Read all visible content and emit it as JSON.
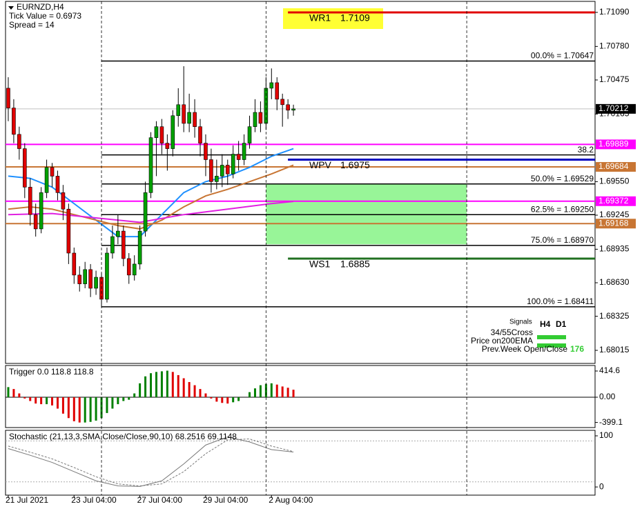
{
  "chart_data": [
    {
      "type": "candlestick",
      "title": "EURNZD,H4",
      "info": [
        "Tick Value = 0.6973",
        "Spread = 14"
      ],
      "x": [
        0,
        1,
        2,
        3,
        4,
        5,
        6,
        7,
        8,
        9,
        10,
        11,
        12,
        13,
        14,
        15,
        16,
        17,
        18,
        19,
        20,
        21,
        22,
        23,
        24,
        25,
        26,
        27,
        28,
        29,
        30,
        31,
        32,
        33,
        34,
        35,
        36,
        37,
        38,
        39,
        40,
        41,
        42,
        43,
        44,
        45,
        46,
        47,
        48,
        49,
        50,
        51,
        52
      ],
      "open": [
        1.704,
        1.7022,
        1.6998,
        1.6985,
        1.695,
        1.6925,
        1.6912,
        1.6945,
        1.6968,
        1.696,
        1.6945,
        1.693,
        1.689,
        1.687,
        1.6862,
        1.6875,
        1.6858,
        1.6868,
        1.6848,
        1.689,
        1.6905,
        1.691,
        1.6885,
        1.687,
        1.688,
        1.691,
        1.6945,
        1.6995,
        1.7005,
        1.699,
        1.6985,
        1.7015,
        1.7025,
        1.7008,
        1.7018,
        1.7005,
        1.699,
        1.6975,
        1.6955,
        1.696,
        1.697,
        1.6962,
        1.698,
        1.6975,
        1.699,
        1.7005,
        1.7018,
        1.7008,
        1.704,
        1.7045,
        1.703,
        1.7025,
        1.702
      ],
      "high": [
        1.705,
        1.703,
        1.7005,
        1.699,
        1.6958,
        1.6935,
        1.695,
        1.6975,
        1.6972,
        1.6965,
        1.6952,
        1.6935,
        1.6895,
        1.6878,
        1.6882,
        1.688,
        1.6874,
        1.6872,
        1.6895,
        1.6915,
        1.6925,
        1.6915,
        1.689,
        1.6888,
        1.6915,
        1.6955,
        1.7,
        1.701,
        1.7012,
        1.6998,
        1.702,
        1.704,
        1.706,
        1.7035,
        1.703,
        1.7012,
        1.6998,
        1.6985,
        1.6975,
        1.698,
        1.6975,
        1.6988,
        1.6992,
        1.6998,
        1.7015,
        1.703,
        1.7028,
        1.705,
        1.7058,
        1.705,
        1.7035,
        1.703,
        1.7025
      ],
      "low": [
        1.701,
        1.699,
        1.6975,
        1.694,
        1.6915,
        1.6905,
        1.6908,
        1.694,
        1.695,
        1.6938,
        1.692,
        1.688,
        1.6862,
        1.6855,
        1.6858,
        1.685,
        1.6852,
        1.6841,
        1.6845,
        1.6885,
        1.6898,
        1.6878,
        1.6862,
        1.6865,
        1.6875,
        1.6905,
        1.694,
        1.696,
        1.698,
        1.6965,
        1.6978,
        1.7005,
        1.7,
        1.7,
        1.6995,
        1.6978,
        1.696,
        1.6945,
        1.6948,
        1.695,
        1.6952,
        1.6958,
        1.6965,
        1.697,
        1.6985,
        1.7,
        1.7,
        1.7002,
        1.703,
        1.702,
        1.7005,
        1.7012,
        1.7015
      ],
      "close": [
        1.7022,
        1.6998,
        1.6985,
        1.695,
        1.6925,
        1.6912,
        1.6945,
        1.6968,
        1.696,
        1.6945,
        1.693,
        1.689,
        1.687,
        1.6862,
        1.6875,
        1.6858,
        1.6868,
        1.6848,
        1.689,
        1.6905,
        1.691,
        1.6885,
        1.687,
        1.688,
        1.691,
        1.6945,
        1.6995,
        1.7005,
        1.699,
        1.6985,
        1.7015,
        1.7025,
        1.7008,
        1.7018,
        1.7005,
        1.699,
        1.6975,
        1.6955,
        1.696,
        1.697,
        1.6962,
        1.698,
        1.6975,
        1.699,
        1.7005,
        1.7018,
        1.7008,
        1.704,
        1.7045,
        1.703,
        1.7025,
        1.702,
        1.70212
      ],
      "up_color": "#00a000",
      "down_color": "#e00000",
      "xlim": [
        -0.5,
        107
      ],
      "xticks": [
        {
          "value": 0,
          "label": "21 Jul 2021"
        },
        {
          "value": 12,
          "label": "23 Jul 04:00"
        },
        {
          "value": 24,
          "label": "27 Jul 04:00"
        },
        {
          "value": 36,
          "label": "29 Jul 04:00"
        },
        {
          "value": 48,
          "label": "2 Aug 04:00"
        }
      ],
      "ylim": [
        1.67896,
        1.7119
      ],
      "yticks": [
        {
          "value": 1.7109,
          "label": "1.71090"
        },
        {
          "value": 1.7078,
          "label": "1.70780"
        },
        1.70475,
        1.70165,
        {
          "value": 1.6955,
          "label": "1.69550"
        },
        1.69245,
        1.68935,
        {
          "value": 1.6863,
          "label": "1.68630"
        },
        1.68325,
        1.68015
      ],
      "separators": [
        17,
        47,
        83.6
      ],
      "overlays": [
        {
          "color": "#1e90ff",
          "x": [
            0,
            4,
            8,
            12,
            16,
            20,
            24,
            28,
            32,
            36,
            40,
            44,
            48,
            52
          ],
          "values": [
            1.696,
            1.6958,
            1.695,
            1.6935,
            1.692,
            1.6905,
            1.6905,
            1.6925,
            1.6945,
            1.6955,
            1.696,
            1.6968,
            1.6978,
            1.6985
          ]
        },
        {
          "color": "#c87533",
          "x": [
            0,
            4,
            8,
            12,
            16,
            20,
            24,
            28,
            32,
            36,
            40,
            44,
            48,
            52
          ],
          "values": [
            1.693,
            1.6932,
            1.693,
            1.6925,
            1.692,
            1.6915,
            1.6912,
            1.692,
            1.6932,
            1.6942,
            1.6948,
            1.6955,
            1.6962,
            1.697
          ]
        },
        {
          "color": "#e020e0",
          "x": [
            0,
            8,
            16,
            24,
            32,
            40,
            48,
            52
          ],
          "values": [
            1.6925,
            1.6926,
            1.6922,
            1.6918,
            1.6925,
            1.693,
            1.6935,
            1.6937
          ]
        }
      ],
      "zone": {
        "x": [
          47,
          83.6
        ],
        "values": [
          1.6898,
          1.6953
        ],
        "color": "#98f598"
      },
      "fibonacci": {
        "start": 17,
        "color": "#000000",
        "levels": [
          {
            "value": 1.70647,
            "label": "00.0% = 1.70647"
          },
          {
            "value": 1.69793,
            "label": "38.2"
          },
          {
            "value": 1.69529,
            "label": "50.0% = 1.69529"
          },
          {
            "value": 1.6925,
            "label": "62.5% = 1.69250"
          },
          {
            "value": 1.6897,
            "label": "75.0% = 1.68970"
          },
          {
            "value": 1.68411,
            "label": "100.0% = 1.68411"
          }
        ]
      },
      "pivots": {
        "start": 51,
        "levels": [
          {
            "name": "WR1",
            "value": 1.7109,
            "color": "#e00000"
          },
          {
            "name": "WPV",
            "value": 1.6975,
            "color": "#0000c0"
          },
          {
            "name": "WS1",
            "value": 1.6885,
            "color": "#207020"
          }
        ]
      },
      "price_tags": [
        {
          "value": 1.70212,
          "color": "#000000"
        },
        {
          "value": 1.69889,
          "color": "#ff00ff"
        },
        {
          "value": 1.69684,
          "color": "#c87533"
        },
        {
          "value": 1.69372,
          "color": "#ff00ff"
        },
        {
          "value": 1.69168,
          "color": "#c87533"
        }
      ],
      "signals": {
        "title": "Signals",
        "columns": [
          "H4",
          "D1"
        ],
        "color": "#33cc33",
        "rows": [
          {
            "label": "34/55Cross"
          },
          {
            "label": "Price on200EMA"
          },
          {
            "label": "Prev.Week Open/Close",
            "value": 176
          }
        ]
      }
    },
    {
      "type": "histogram",
      "title": "Trigger 0.0 118.8 118.8",
      "x": [
        0,
        1,
        2,
        3,
        4,
        5,
        6,
        7,
        8,
        9,
        10,
        11,
        12,
        13,
        14,
        15,
        16,
        17,
        18,
        19,
        20,
        21,
        22,
        23,
        24,
        25,
        26,
        27,
        28,
        29,
        30,
        31,
        32,
        33,
        34,
        35,
        36,
        37,
        38,
        39,
        40,
        41,
        42,
        43,
        44,
        45,
        46,
        47,
        48,
        49,
        50,
        51,
        52
      ],
      "values": [
        160,
        130,
        60,
        -20,
        -60,
        -100,
        -110,
        -110,
        -130,
        -180,
        -260,
        -330,
        -380,
        -400,
        -400,
        -390,
        -370,
        -330,
        -250,
        -180,
        -110,
        -60,
        -40,
        60,
        220,
        330,
        380,
        400,
        410,
        420,
        400,
        350,
        300,
        240,
        190,
        130,
        60,
        -20,
        -70,
        -90,
        -100,
        -80,
        -60,
        0,
        80,
        140,
        190,
        210,
        220,
        200,
        170,
        150,
        118.8
      ],
      "up_color": "#008000",
      "down_color": "#e00000",
      "ylim": [
        -480,
        502
      ],
      "yticks": [
        414.6,
        {
          "value": 0,
          "label": "0.00"
        },
        -399.1
      ]
    },
    {
      "type": "line",
      "title": "Stochastic (21,13,3,SMA,Close/Close,90,10) 68.2516 69.1148",
      "series": [
        {
          "color": "#777777",
          "x": [
            0,
            4,
            8,
            12,
            16,
            20,
            24,
            28,
            32,
            36,
            40,
            44,
            48,
            52
          ],
          "values": [
            75,
            62,
            48,
            30,
            12,
            2,
            1,
            12,
            45,
            82,
            98,
            88,
            73,
            68.2516
          ]
        },
        {
          "color": "#777777",
          "dashed": true,
          "x": [
            0,
            4,
            8,
            12,
            16,
            20,
            24,
            28,
            32,
            36,
            40,
            44,
            48,
            52
          ],
          "values": [
            80,
            68,
            55,
            38,
            20,
            6,
            2,
            6,
            30,
            65,
            92,
            94,
            80,
            69.1148
          ]
        }
      ],
      "levels": [
        90,
        10
      ],
      "ylim": [
        -16,
        110.8
      ],
      "yticks": [
        100,
        0
      ]
    }
  ]
}
